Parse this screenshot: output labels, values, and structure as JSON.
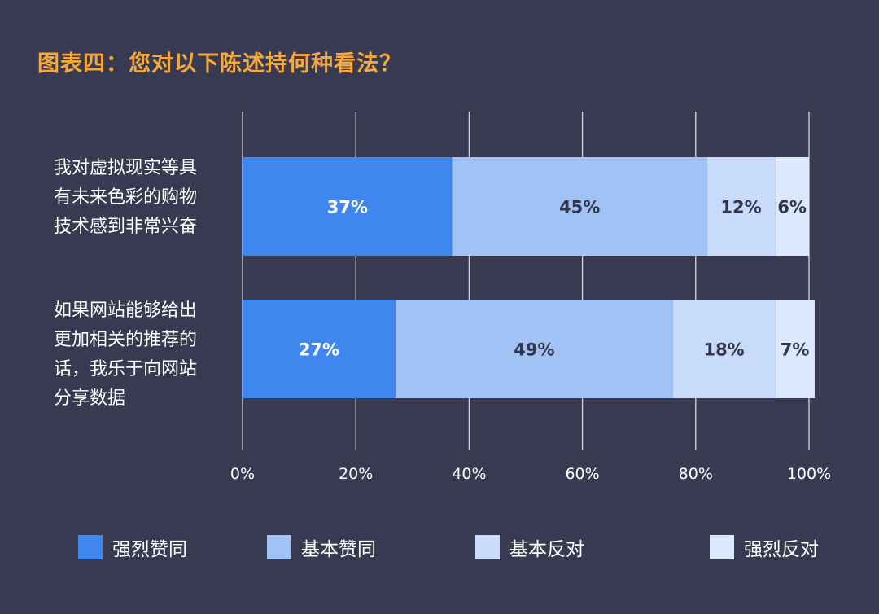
{
  "title": "图表四：您对以下陈述持何种看法？",
  "chart_data": {
    "type": "bar",
    "orientation": "horizontal",
    "stacked": true,
    "categories": [
      "我对虚拟现实等具有未来色彩的购物技术感到非常兴奋",
      "如果网站能够给出更加相关的推荐的话，我乐于向网站分享数据"
    ],
    "series": [
      {
        "name": "强烈赞同",
        "values": [
          37,
          27
        ],
        "color": "#3f86ef"
      },
      {
        "name": "基本赞同",
        "values": [
          45,
          49
        ],
        "color": "#a1c2f5"
      },
      {
        "name": "基本反对",
        "values": [
          12,
          18
        ],
        "color": "#c9dbfb"
      },
      {
        "name": "强烈反对",
        "values": [
          6,
          7
        ],
        "color": "#dce8fd"
      }
    ],
    "data_labels": [
      [
        "37%",
        "45%",
        "12%",
        "6%"
      ],
      [
        "27%",
        "49%",
        "18%",
        "7%"
      ]
    ],
    "xlim": [
      0,
      100
    ],
    "xticks": [
      "0%",
      "20%",
      "40%",
      "60%",
      "80%",
      "100%"
    ],
    "grid": true,
    "legend_position": "bottom"
  },
  "category_labels": [
    [
      "我对虚拟现实等具",
      "有未来色彩的购物",
      "技术感到非常兴奋"
    ],
    [
      "如果网站能够给出",
      "更加相关的推荐的",
      "话，我乐于向网站",
      "分享数据"
    ]
  ]
}
